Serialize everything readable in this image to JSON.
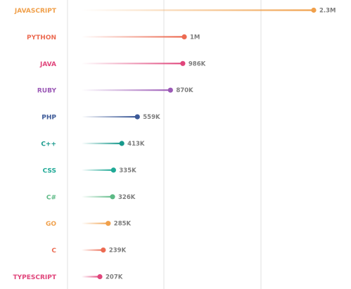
{
  "chart_data": {
    "type": "lollipop",
    "orientation": "horizontal",
    "categories": [
      "JAVASCRIPT",
      "PYTHON",
      "JAVA",
      "RUBY",
      "PHP",
      "C++",
      "CSS",
      "C#",
      "GO",
      "C",
      "TYPESCRIPT"
    ],
    "values": [
      2300000,
      1000000,
      986000,
      870000,
      559000,
      413000,
      335000,
      326000,
      285000,
      239000,
      207000
    ],
    "value_labels": [
      "2.3M",
      "1M",
      "986K",
      "870K",
      "559K",
      "413K",
      "335K",
      "326K",
      "285K",
      "239K",
      "207K"
    ],
    "colors": [
      "#f0a04b",
      "#ec6b52",
      "#e0457b",
      "#9b59b6",
      "#3d5a98",
      "#17998c",
      "#1fa996",
      "#5cb985",
      "#f0a04b",
      "#ec6b52",
      "#e0457b"
    ],
    "grid": true,
    "legend": "none",
    "title": "",
    "xlabel": "",
    "ylabel": ""
  }
}
